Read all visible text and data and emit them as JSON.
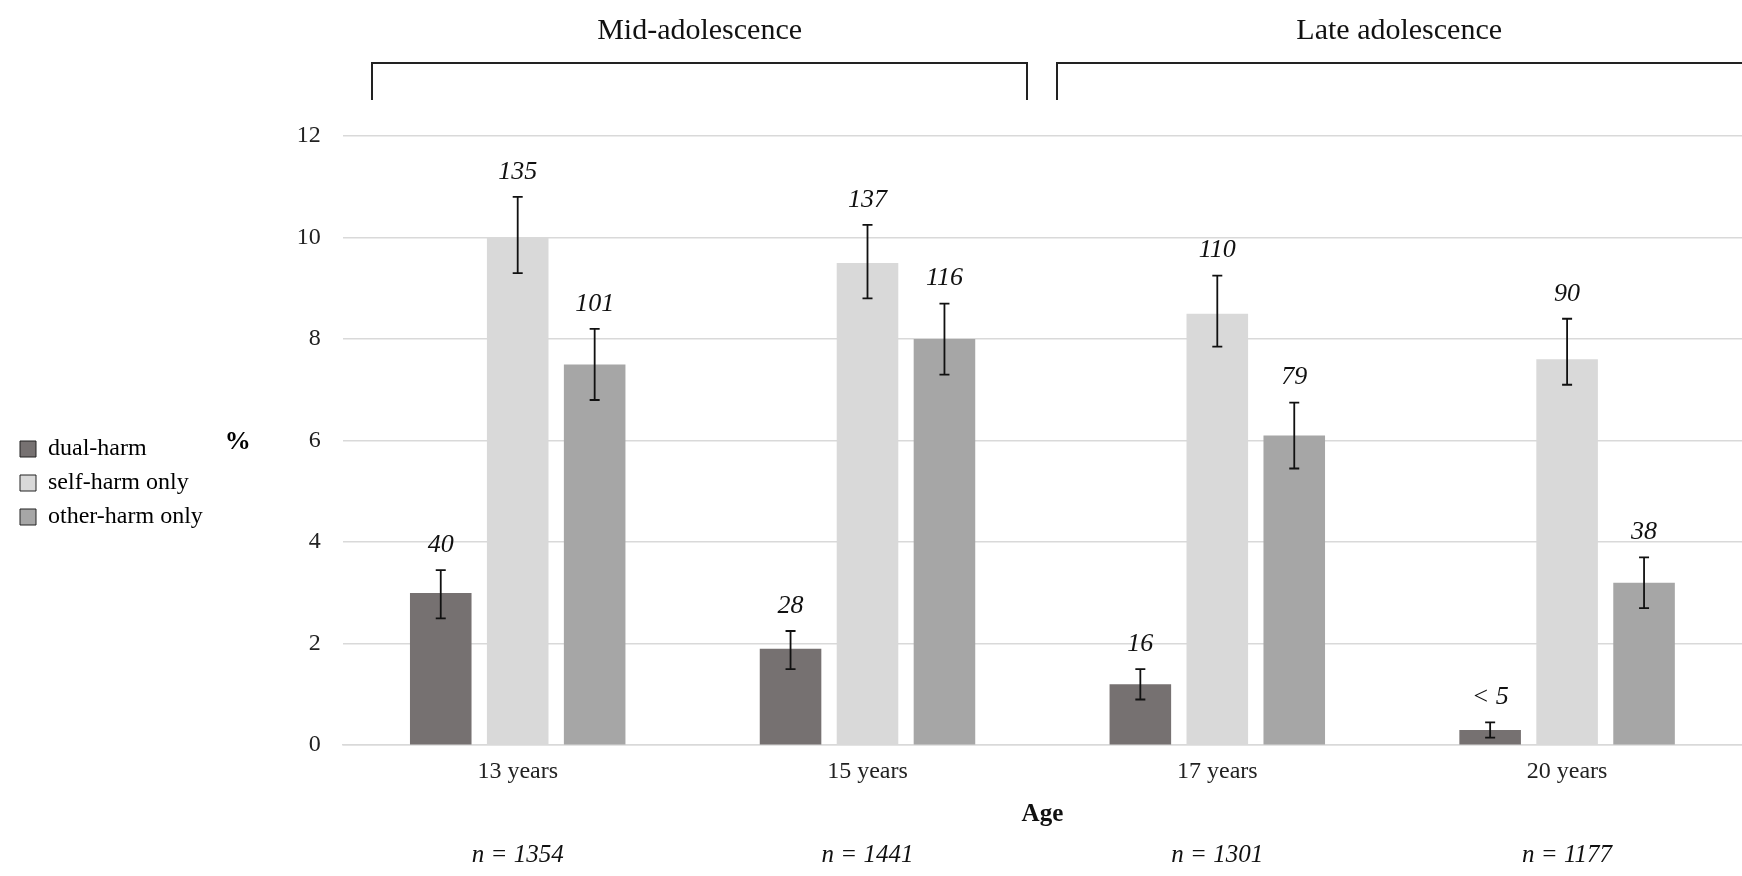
{
  "chart_data": {
    "type": "bar",
    "xlabel": "Age",
    "ylabel": "%",
    "categories": [
      "13 years",
      "15 years",
      "17 years",
      "20 years"
    ],
    "series": [
      {
        "name": "dual-harm",
        "color": "#767171",
        "values": [
          3.0,
          1.9,
          1.2,
          0.3
        ],
        "errors": [
          [
            2.5,
            3.45
          ],
          [
            1.5,
            2.25
          ],
          [
            0.9,
            1.5
          ],
          [
            0.15,
            0.45
          ]
        ]
      },
      {
        "name": "self-harm only",
        "color": "#d9d9d9",
        "values": [
          10.0,
          9.5,
          8.5,
          7.6
        ],
        "errors": [
          [
            9.3,
            10.8
          ],
          [
            8.8,
            10.25
          ],
          [
            7.85,
            9.25
          ],
          [
            7.1,
            8.4
          ]
        ]
      },
      {
        "name": "other-harm only",
        "color": "#a6a6a6",
        "values": [
          7.5,
          8.0,
          6.1,
          3.2
        ],
        "errors": [
          [
            6.8,
            8.2
          ],
          [
            7.3,
            8.7
          ],
          [
            5.45,
            6.75
          ],
          [
            2.7,
            3.7
          ]
        ]
      }
    ],
    "ylim": [
      0,
      12
    ],
    "yticks": [
      0,
      2,
      4,
      6,
      8,
      10,
      12
    ],
    "grid": "y",
    "legend": "left",
    "annotations": [
      "Mid-adolescence",
      "Late adolescence",
      "n = 1354",
      "n = 1441",
      "n = 1301",
      "n = 1177",
      "40",
      "28",
      "16",
      "< 5",
      "135",
      "137",
      "110",
      "90",
      "101",
      "116",
      "79",
      "38"
    ]
  }
}
